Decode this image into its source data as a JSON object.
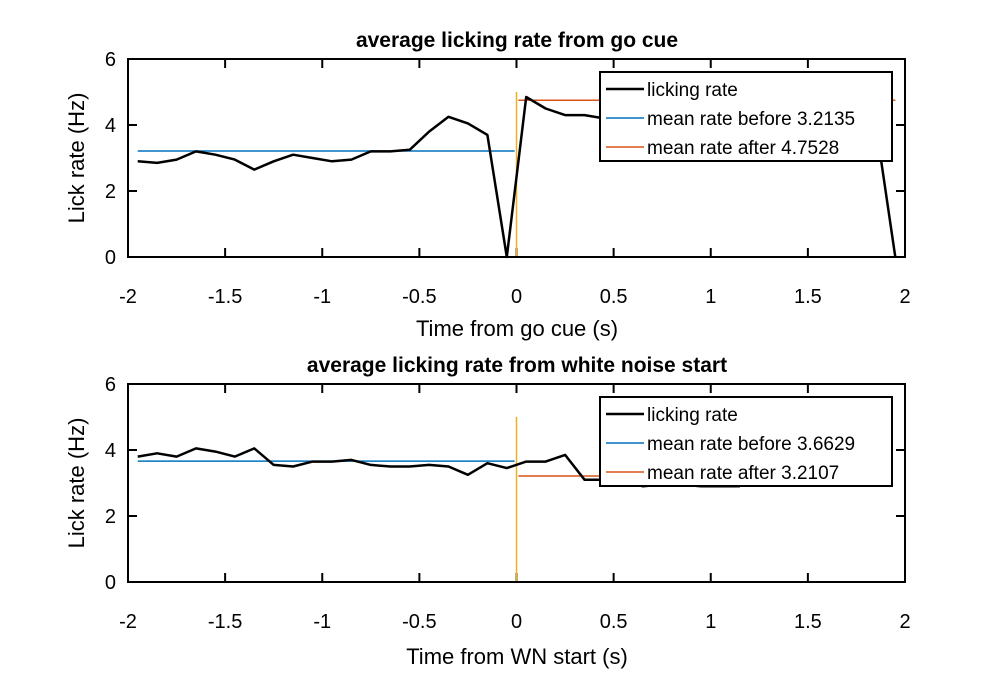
{
  "chart_data": [
    {
      "type": "line",
      "title": "average licking rate from go cue",
      "xlabel": "Time from go cue (s)",
      "ylabel": "Lick rate (Hz)",
      "xlim": [
        -2,
        2
      ],
      "ylim": [
        0,
        6
      ],
      "xticks": [
        -2,
        -1.5,
        -1,
        -0.5,
        0,
        0.5,
        1,
        1.5,
        2
      ],
      "yticks": [
        0,
        2,
        4,
        6
      ],
      "xtick_labels": [
        "-2",
        "-1.5",
        "-1",
        "-0.5",
        "0",
        "0.5",
        "1",
        "1.5",
        "2"
      ],
      "ytick_labels": [
        "0",
        "2",
        "4",
        "6"
      ],
      "grid": false,
      "legend_position": "top-right",
      "series": [
        {
          "name": "licking rate",
          "color": "#000000",
          "x": [
            -1.95,
            -1.85,
            -1.75,
            -1.65,
            -1.55,
            -1.45,
            -1.35,
            -1.25,
            -1.15,
            -1.05,
            -0.95,
            -0.85,
            -0.75,
            -0.65,
            -0.55,
            -0.45,
            -0.35,
            -0.25,
            -0.15,
            -0.05,
            0.05,
            0.15,
            0.25,
            0.35,
            0.45,
            0.55,
            0.65,
            0.75,
            0.85,
            0.95,
            1.05,
            1.15,
            1.25,
            1.35,
            1.45,
            1.55,
            1.65,
            1.75,
            1.85,
            1.95
          ],
          "y": [
            2.9,
            2.85,
            2.95,
            3.2,
            3.1,
            2.95,
            2.65,
            2.9,
            3.1,
            3.0,
            2.9,
            2.95,
            3.2,
            3.2,
            3.25,
            3.8,
            4.25,
            4.05,
            3.7,
            0.0,
            4.85,
            4.5,
            4.3,
            4.3,
            4.2,
            4.2,
            4.4,
            4.45,
            4.45,
            4.4,
            4.5,
            4.4,
            4.55,
            4.55,
            4.5,
            4.35,
            4.3,
            4.2,
            4.0,
            0.0
          ]
        },
        {
          "name": "mean rate before 3.2135",
          "color": "#0072BD",
          "x": [
            -1.95,
            -0.01
          ],
          "y": [
            3.2135,
            3.2135
          ]
        },
        {
          "name": "mean rate after 4.7528",
          "color": "#D95319",
          "x": [
            0.01,
            1.95
          ],
          "y": [
            4.7528,
            4.7528
          ]
        },
        {
          "name": "",
          "color": "#EDB120",
          "x": [
            0,
            0
          ],
          "y": [
            0,
            5.0
          ]
        }
      ]
    },
    {
      "type": "line",
      "title": "average licking rate from white noise start",
      "xlabel": "Time from WN start (s)",
      "ylabel": "Lick rate (Hz)",
      "xlim": [
        -2,
        2
      ],
      "ylim": [
        0,
        6
      ],
      "xticks": [
        -2,
        -1.5,
        -1,
        -0.5,
        0,
        0.5,
        1,
        1.5,
        2
      ],
      "yticks": [
        0,
        2,
        4,
        6
      ],
      "xtick_labels": [
        "-2",
        "-1.5",
        "-1",
        "-0.5",
        "0",
        "0.5",
        "1",
        "1.5",
        "2"
      ],
      "ytick_labels": [
        "0",
        "2",
        "4",
        "6"
      ],
      "grid": false,
      "legend_position": "top-right",
      "series": [
        {
          "name": "licking rate",
          "color": "#000000",
          "x": [
            -1.95,
            -1.85,
            -1.75,
            -1.65,
            -1.55,
            -1.45,
            -1.35,
            -1.25,
            -1.15,
            -1.05,
            -0.95,
            -0.85,
            -0.75,
            -0.65,
            -0.55,
            -0.45,
            -0.35,
            -0.25,
            -0.15,
            -0.05,
            0.05,
            0.15,
            0.25,
            0.35,
            0.45,
            0.55,
            0.65,
            0.75,
            0.85,
            0.95,
            1.05,
            1.15
          ],
          "y": [
            3.8,
            3.9,
            3.8,
            4.05,
            3.95,
            3.8,
            4.05,
            3.55,
            3.5,
            3.65,
            3.65,
            3.7,
            3.55,
            3.5,
            3.5,
            3.55,
            3.5,
            3.25,
            3.6,
            3.45,
            3.65,
            3.65,
            3.85,
            3.1,
            3.1,
            3.1,
            2.9,
            2.95,
            2.95,
            2.9,
            2.9,
            2.9
          ]
        },
        {
          "name": "mean rate before 3.6629",
          "color": "#0072BD",
          "x": [
            -1.95,
            -0.01
          ],
          "y": [
            3.6629,
            3.6629
          ]
        },
        {
          "name": "mean rate after 3.2107",
          "color": "#D95319",
          "x": [
            0.01,
            1.15
          ],
          "y": [
            3.2107,
            3.2107
          ]
        },
        {
          "name": "",
          "color": "#EDB120",
          "x": [
            0,
            0
          ],
          "y": [
            0,
            5.0
          ]
        }
      ]
    }
  ]
}
